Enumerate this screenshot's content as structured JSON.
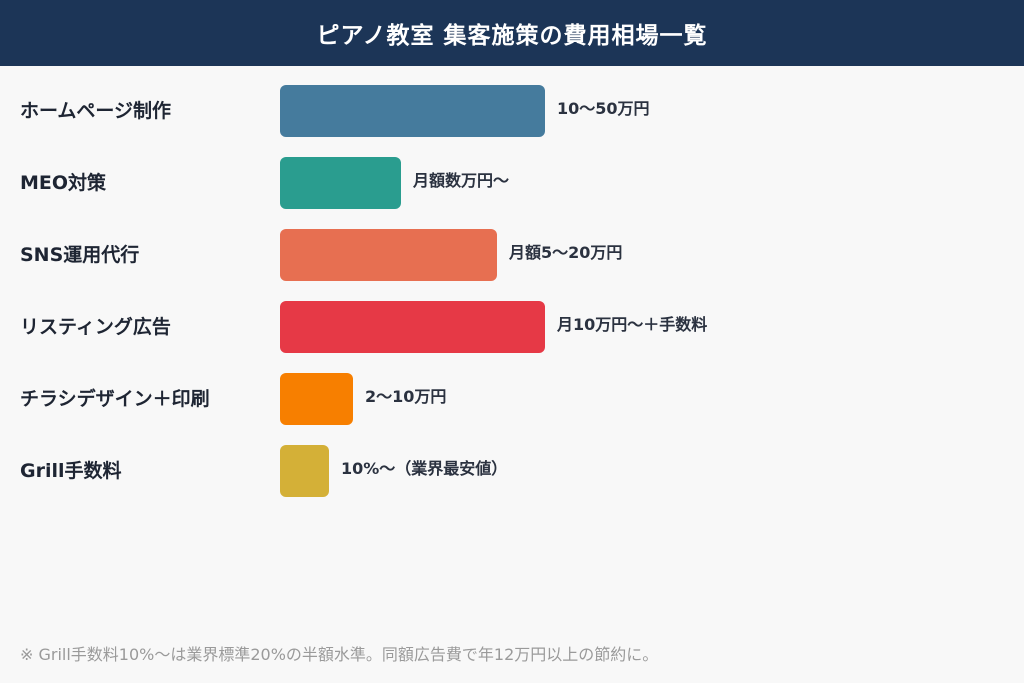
{
  "header": {
    "title": "ピアノ教室 集客施策の費用相場一覧"
  },
  "chart_data": {
    "type": "bar",
    "orientation": "horizontal",
    "title": "ピアノ教室 集客施策の費用相場一覧",
    "categories": [
      "ホームページ制作",
      "MEO対策",
      "SNS運用代行",
      "リスティング広告",
      "チラシデザイン＋印刷",
      "Grill手数料"
    ],
    "values": [
      265,
      121,
      217,
      265,
      73,
      49
    ],
    "value_labels": [
      "10〜50万円",
      "月額数万円〜",
      "月額5〜20万円",
      "月10万円〜＋手数料",
      "2〜10万円",
      "10%〜（業界最安値）"
    ],
    "colors": [
      "#457b9d",
      "#2a9d8f",
      "#e76f51",
      "#e63946",
      "#f77f00",
      "#d4b037"
    ],
    "grid": false,
    "legend": "none"
  },
  "footnote": "※ Grill手数料10%〜は業界標準20%の半額水準。同額広告費で年12万円以上の節約に。"
}
